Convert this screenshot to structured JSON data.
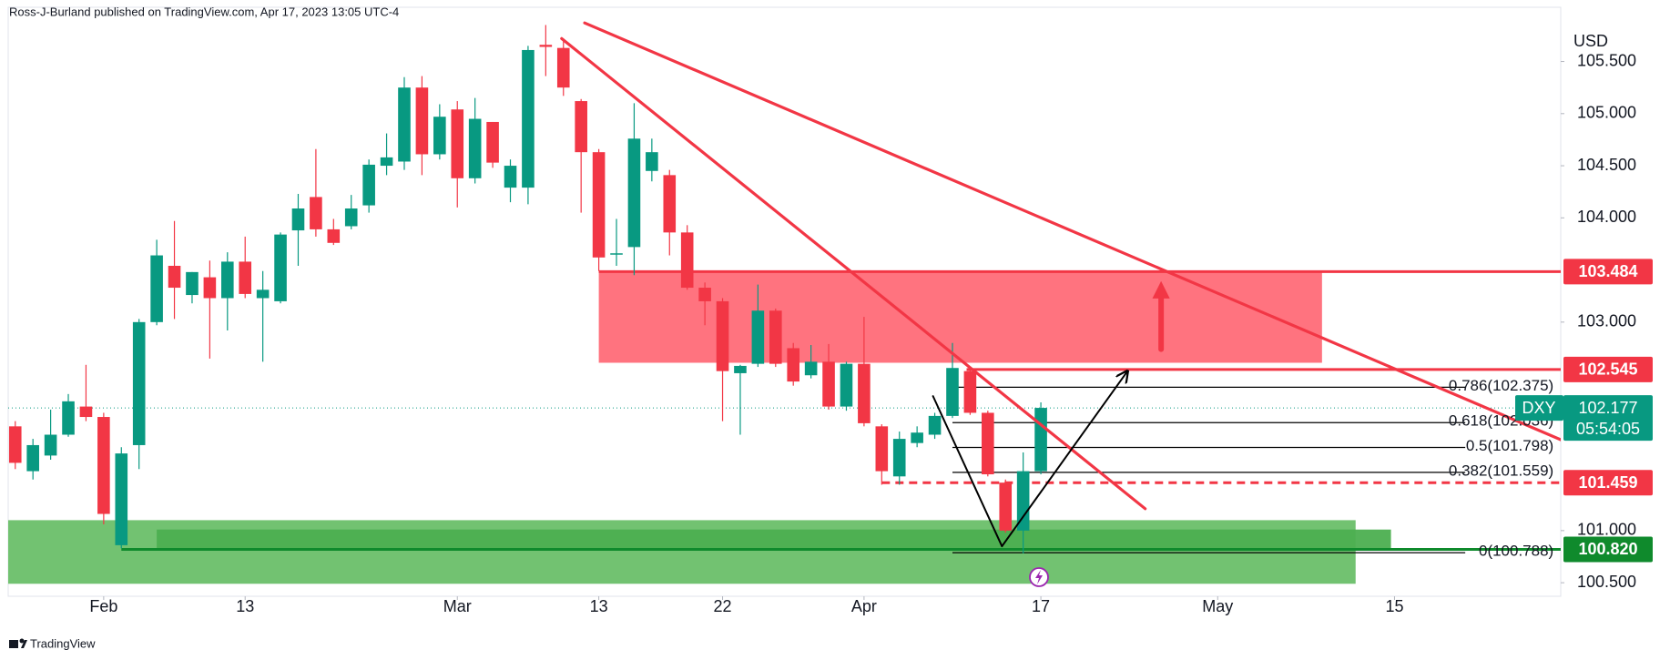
{
  "chart_data": {
    "type": "candlestick",
    "title": "Ross-J-Burland published on TradingView.com, Apr 17, 2023 13:05 UTC-4",
    "footer": "TradingView",
    "currency": "USD",
    "symbol": "DXY",
    "countdown": "05:54:05",
    "up_color": "#089981",
    "down_color": "#f23645",
    "open": [
      102.0,
      101.57,
      101.72,
      101.92,
      102.19,
      102.09,
      100.86,
      101.82,
      103.0,
      103.54,
      103.26,
      103.43,
      103.23,
      103.58,
      103.23,
      103.2,
      103.88,
      104.2,
      103.89,
      103.92,
      104.12,
      104.5,
      104.54,
      105.25,
      104.61,
      105.04,
      104.38,
      104.92,
      104.29,
      104.29,
      105.66,
      105.63,
      105.12,
      104.63,
      103.65,
      103.72,
      104.45,
      104.41,
      103.86,
      103.33,
      103.2,
      102.51,
      102.6,
      103.11,
      102.75,
      102.49,
      102.62,
      102.19,
      102.6,
      102.0,
      101.52,
      101.84,
      101.92,
      102.1,
      102.53,
      102.13,
      101.46,
      101.0,
      101.57
    ],
    "high": [
      102.05,
      101.88,
      102.16,
      102.31,
      102.59,
      102.13,
      101.8,
      103.03,
      103.79,
      103.97,
      103.48,
      103.59,
      103.67,
      103.82,
      103.49,
      103.86,
      104.23,
      104.66,
      103.99,
      104.22,
      104.56,
      104.81,
      105.35,
      105.36,
      105.09,
      105.12,
      105.15,
      104.92,
      104.56,
      105.65,
      105.85,
      105.72,
      105.14,
      104.66,
      103.99,
      105.1,
      104.76,
      104.46,
      103.93,
      103.38,
      103.23,
      102.59,
      103.36,
      103.13,
      102.8,
      102.78,
      102.79,
      102.62,
      103.05,
      102.02,
      101.95,
      102.0,
      102.13,
      102.8,
      102.57,
      102.15,
      101.49,
      101.75,
      102.23
    ],
    "low": [
      101.59,
      101.49,
      101.68,
      101.9,
      102.05,
      101.06,
      100.83,
      101.59,
      102.97,
      103.03,
      103.18,
      102.65,
      102.92,
      103.23,
      102.62,
      103.18,
      103.54,
      103.82,
      103.74,
      103.89,
      104.05,
      104.41,
      104.46,
      104.41,
      104.56,
      104.1,
      104.33,
      104.48,
      104.15,
      104.13,
      105.36,
      105.17,
      104.05,
      103.49,
      103.54,
      103.45,
      104.35,
      103.64,
      103.31,
      102.97,
      102.05,
      101.92,
      102.57,
      102.57,
      102.39,
      102.46,
      102.16,
      102.15,
      102.0,
      101.44,
      101.44,
      101.8,
      101.88,
      102.08,
      102.11,
      101.52,
      100.98,
      100.78,
      101.54
    ],
    "close": [
      101.65,
      101.82,
      101.92,
      102.24,
      102.09,
      101.16,
      101.74,
      103.0,
      103.64,
      103.33,
      103.48,
      103.23,
      103.58,
      103.27,
      103.31,
      103.84,
      104.09,
      103.89,
      103.76,
      104.09,
      104.51,
      104.58,
      105.25,
      104.61,
      104.97,
      104.38,
      104.95,
      104.53,
      104.5,
      105.61,
      105.64,
      105.25,
      104.63,
      103.62,
      103.66,
      104.76,
      104.63,
      103.86,
      103.33,
      103.2,
      102.53,
      102.58,
      103.11,
      102.6,
      102.43,
      102.62,
      102.19,
      102.6,
      102.03,
      101.57,
      101.88,
      101.94,
      102.1,
      102.56,
      102.13,
      101.54,
      101.0,
      101.57,
      102.177
    ],
    "xlim": [
      -0.4,
      87.4
    ],
    "xticks": [
      {
        "value": 5,
        "label": "Feb"
      },
      13,
      {
        "value": 25,
        "label": "Mar"
      },
      {
        "value": 33,
        "label": "13"
      },
      {
        "value": 40,
        "label": "22"
      },
      {
        "value": 48,
        "label": "Apr"
      },
      {
        "value": 58,
        "label": "17"
      },
      {
        "value": 68,
        "label": "May"
      },
      {
        "value": 78,
        "label": "15"
      }
    ],
    "ylim": [
      100.37,
      106.02
    ],
    "yticks": [
      {
        "value": 105.5,
        "label": "105.500"
      },
      {
        "value": 105,
        "label": "105.000"
      },
      {
        "value": 104.5,
        "label": "104.500"
      },
      {
        "value": 104,
        "label": "104.000"
      },
      {
        "value": 103,
        "label": "103.000"
      },
      {
        "value": 101,
        "label": "101.000"
      },
      {
        "value": 100.5,
        "label": "100.500"
      }
    ],
    "zones": [
      {
        "price": [
          100.49,
          101.1
        ],
        "x": [
          -0.4,
          75.8
        ],
        "color": "#6abf69"
      },
      {
        "price": [
          100.83,
          101.01
        ],
        "x": [
          8,
          77.8
        ],
        "color": "#4caf50"
      },
      {
        "price": [
          102.61,
          103.484
        ],
        "x": [
          33,
          73.9
        ],
        "color": "#ff6b78"
      }
    ],
    "levels": [
      {
        "value": 103.484,
        "from": 33,
        "color": "#f23645",
        "dashed": false
      },
      {
        "value": 102.545,
        "from": 53.8,
        "color": "#f23645",
        "dashed": false
      },
      {
        "value": 101.459,
        "from": 49,
        "color": "#f23645",
        "dashed": true
      },
      {
        "value": 100.82,
        "label": "100.820",
        "from": 6,
        "color": "#0f8a2c",
        "dashed": false
      }
    ],
    "fib": {
      "x": [
        53,
        82
      ],
      "color": "#000000",
      "levels": [
        {
          "price": 102.375,
          "label": "0.786(102.375)"
        },
        {
          "price": 102.036,
          "label": "0.618(102.036)"
        },
        {
          "price": 101.798,
          "label": "0.5(101.798)"
        },
        {
          "price": 101.559,
          "label": "0.382(101.559)"
        },
        {
          "price": 100.788,
          "label": "0(100.788)"
        }
      ]
    },
    "trendlines": [
      {
        "points": [
          [
            30.9,
            105.72
          ],
          [
            63.9,
            101.21
          ]
        ],
        "color": "#f23645",
        "arrow": false
      },
      {
        "points": [
          [
            32.2,
            105.87
          ],
          [
            87.7,
            101.85
          ]
        ],
        "color": "#f23645",
        "arrow": false
      },
      {
        "points": [
          [
            51.9,
            102.29
          ],
          [
            55.8,
            100.85
          ],
          [
            62.9,
            102.53
          ]
        ],
        "color": "#000000",
        "arrow": true
      },
      {
        "points": [
          [
            64.8,
            102.74
          ],
          [
            64.8,
            103.31
          ]
        ],
        "color": "#f23645",
        "arrow": true
      }
    ]
  }
}
